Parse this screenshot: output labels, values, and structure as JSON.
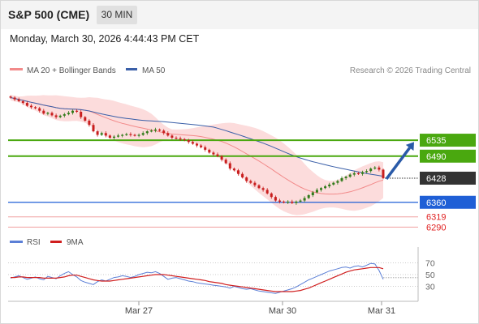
{
  "header": {
    "instrument": "S&P 500 (CME)",
    "timeframe": "30 MIN",
    "datetime": "Monday, March 30, 2026 4:44:43 PM CET"
  },
  "legend": {
    "ma20": "MA 20 + Bollinger Bands",
    "ma50": "MA 50",
    "credit": "Research © 2026 Trading Central",
    "rsi": "RSI",
    "rsi_ma": "9MA"
  },
  "colors": {
    "ma20": "#f28a8a",
    "bollinger_fill": "#fbd0d0",
    "ma50": "#3a5fa8",
    "resistance": "#4aa80f",
    "support": "#1f5fd6",
    "target": "#e02020",
    "current": "#333333",
    "arrow": "#2a5aa8",
    "candle_up": "#2f7a18",
    "candle_down": "#c81e1e",
    "rsi": "#5b7fd6",
    "rsi_ma": "#d01e1e"
  },
  "chart_data": {
    "type": "candlestick",
    "x_tick_labels": [
      "Mar 27",
      "Mar 30",
      "Mar 31"
    ],
    "price_levels": [
      {
        "label": "6535",
        "value": 6535,
        "kind": "resistance"
      },
      {
        "label": "6490",
        "value": 6490,
        "kind": "resistance"
      },
      {
        "label": "6428",
        "value": 6428,
        "kind": "current"
      },
      {
        "label": "6360",
        "value": 6360,
        "kind": "support"
      },
      {
        "label": "6319",
        "value": 6319,
        "kind": "target"
      },
      {
        "label": "6290",
        "value": 6290,
        "kind": "target"
      }
    ],
    "price_range": [
      6275,
      6720
    ],
    "close": [
      6655,
      6650,
      6645,
      6640,
      6632,
      6628,
      6625,
      6618,
      6610,
      6612,
      6605,
      6600,
      6604,
      6608,
      6612,
      6618,
      6615,
      6600,
      6590,
      6578,
      6560,
      6550,
      6555,
      6548,
      6542,
      6545,
      6548,
      6550,
      6552,
      6550,
      6548,
      6550,
      6555,
      6560,
      6562,
      6565,
      6562,
      6555,
      6548,
      6542,
      6540,
      6538,
      6535,
      6530,
      6525,
      6520,
      6515,
      6508,
      6500,
      6495,
      6490,
      6480,
      6470,
      6455,
      6450,
      6440,
      6430,
      6420,
      6415,
      6408,
      6400,
      6395,
      6385,
      6375,
      6365,
      6362,
      6360,
      6362,
      6358,
      6362,
      6365,
      6372,
      6380,
      6388,
      6395,
      6400,
      6405,
      6410,
      6415,
      6420,
      6428,
      6432,
      6438,
      6442,
      6440,
      6445,
      6448,
      6455,
      6458,
      6452,
      6428
    ],
    "rsi_axis": [
      30,
      50,
      70
    ],
    "rsi": [
      44,
      46,
      48,
      45,
      42,
      44,
      46,
      43,
      41,
      47,
      45,
      43,
      48,
      52,
      55,
      50,
      46,
      40,
      37,
      35,
      33,
      38,
      41,
      39,
      42,
      45,
      46,
      48,
      47,
      45,
      47,
      50,
      52,
      54,
      53,
      55,
      52,
      47,
      42,
      44,
      45,
      43,
      41,
      39,
      38,
      36,
      35,
      34,
      33,
      32,
      31,
      30,
      29,
      27,
      30,
      28,
      26,
      25,
      26,
      24,
      22,
      21,
      20,
      19,
      18,
      20,
      22,
      24,
      26,
      29,
      33,
      37,
      41,
      44,
      47,
      50,
      53,
      56,
      58,
      60,
      62,
      63,
      61,
      64,
      65,
      63,
      66,
      69,
      68,
      57,
      42
    ],
    "rsi_ma": [
      45,
      45,
      46,
      46,
      45,
      45,
      45,
      45,
      44,
      44,
      44,
      44,
      45,
      46,
      48,
      49,
      49,
      47,
      45,
      43,
      41,
      40,
      39,
      39,
      39,
      40,
      41,
      42,
      43,
      44,
      45,
      46,
      47,
      48,
      49,
      50,
      50,
      50,
      49,
      48,
      47,
      46,
      45,
      44,
      43,
      42,
      41,
      40,
      38,
      37,
      36,
      35,
      33,
      32,
      31,
      30,
      29,
      28,
      27,
      26,
      25,
      24,
      23,
      22,
      21,
      21,
      21,
      21,
      21,
      22,
      23,
      25,
      27,
      30,
      33,
      36,
      39,
      42,
      45,
      48,
      51,
      54,
      56,
      58,
      59,
      60,
      61,
      62,
      62,
      62,
      60
    ]
  }
}
